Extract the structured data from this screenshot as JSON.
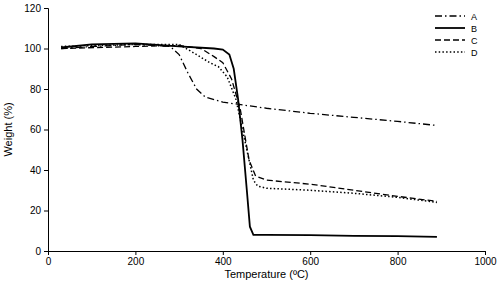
{
  "chart_data": {
    "type": "line",
    "x_label": "Temperature (ºC)",
    "y_label": "Weight (%)",
    "xlim": [
      0,
      1000
    ],
    "xticks": [
      0,
      200,
      400,
      600,
      800,
      1000
    ],
    "ylim": [
      0,
      120
    ],
    "yticks": [
      0,
      20,
      40,
      60,
      80,
      100,
      120
    ],
    "legend": "upper right",
    "grid": false,
    "series": [
      {
        "name": "A",
        "color": "#000000",
        "line_style": "dashdot",
        "x": [
          30,
          100,
          200,
          280,
          300,
          320,
          340,
          360,
          400,
          450,
          500,
          600,
          700,
          800,
          890
        ],
        "values": [
          100,
          101,
          102,
          101,
          97,
          88,
          80,
          76,
          73.5,
          72,
          70.5,
          68,
          66,
          64,
          62
        ]
      },
      {
        "name": "B",
        "color": "#000000",
        "line_style": "solid",
        "x": [
          30,
          100,
          200,
          300,
          380,
          400,
          415,
          425,
          435,
          445,
          455,
          462,
          470,
          500,
          600,
          700,
          800,
          890
        ],
        "values": [
          100.5,
          102,
          102.5,
          101,
          100,
          99.5,
          97,
          90,
          75,
          55,
          30,
          12,
          8,
          8,
          7.8,
          7.5,
          7.3,
          7
        ]
      },
      {
        "name": "C",
        "color": "#000000",
        "line_style": "dashed",
        "x": [
          30,
          200,
          300,
          350,
          380,
          400,
          420,
          440,
          460,
          475,
          500,
          600,
          700,
          800,
          890
        ],
        "values": [
          100,
          101,
          101.5,
          100,
          96,
          93,
          85,
          70,
          45,
          37,
          35,
          33,
          30,
          27,
          24.5
        ]
      },
      {
        "name": "D",
        "color": "#000000",
        "line_style": "dotted",
        "x": [
          30,
          200,
          300,
          340,
          370,
          390,
          410,
          430,
          450,
          470,
          480,
          500,
          600,
          700,
          800,
          890
        ],
        "values": [
          101,
          102,
          102,
          97,
          93,
          91,
          86,
          75,
          55,
          35,
          32,
          31,
          30,
          28.5,
          26.5,
          24
        ]
      }
    ]
  }
}
